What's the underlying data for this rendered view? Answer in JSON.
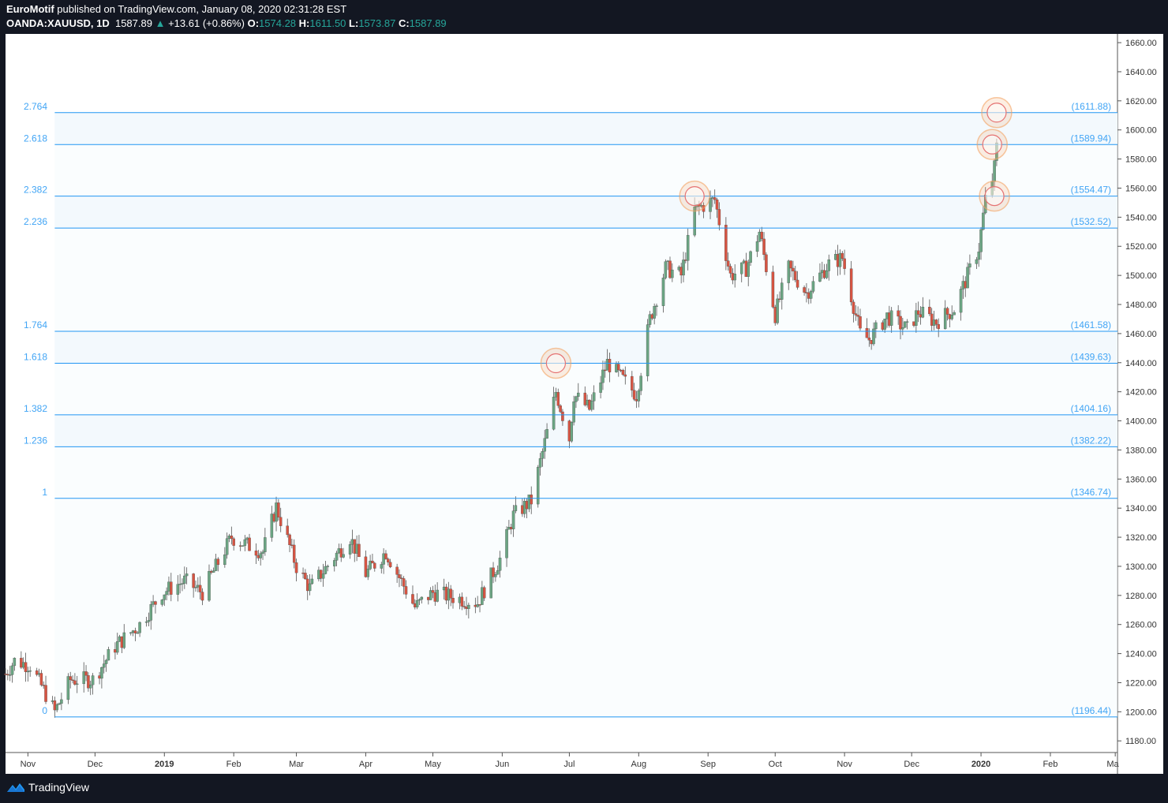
{
  "header": {
    "author": "EuroMotif",
    "published_text": " published on TradingView.com, January 08, 2020 02:31:28 EST",
    "symbol": "OANDA:XAUUSD, 1D",
    "last": "1587.89",
    "change": "+13.61 (+0.86%)",
    "o_label": "O:",
    "o_value": "1574.28",
    "h_label": "H:",
    "h_value": "1611.50",
    "l_label": "L:",
    "l_value": "1573.87",
    "c_label": "C:",
    "c_value": "1587.89"
  },
  "footer": {
    "brand": "TradingView",
    "logo_icon": "tradingview-logo-icon"
  },
  "colors": {
    "up": "#6ba583",
    "down": "#d75442",
    "fib_line": "#2196f3",
    "fib_text": "#42a5f5",
    "fib_band": "#eef6fd",
    "circle": "#f4a261"
  },
  "chart_data": {
    "type": "candlestick",
    "ylim": [
      1172,
      1666
    ],
    "y_ticks": [
      1180,
      1200,
      1220,
      1240,
      1260,
      1280,
      1300,
      1320,
      1340,
      1360,
      1380,
      1400,
      1420,
      1440,
      1460,
      1480,
      1500,
      1520,
      1540,
      1560,
      1580,
      1600,
      1620,
      1640,
      1660
    ],
    "y_tick_labels": [
      "1180.00",
      "1200.00",
      "1220.00",
      "1240.00",
      "1260.00",
      "1280.00",
      "1300.00",
      "1320.00",
      "1340.00",
      "1360.00",
      "1380.00",
      "1400.00",
      "1420.00",
      "1440.00",
      "1460.00",
      "1480.00",
      "1500.00",
      "1520.00",
      "1540.00",
      "1560.00",
      "1580.00",
      "1600.00",
      "1620.00",
      "1640.00",
      "1660.00"
    ],
    "x_labels": [
      "Nov",
      "Dec",
      "2019",
      "Feb",
      "Mar",
      "Apr",
      "May",
      "Jun",
      "Jul",
      "Aug",
      "Sep",
      "Oct",
      "Nov",
      "Dec",
      "2020",
      "Feb",
      "Ma"
    ],
    "x_label_dates": [
      "2018-11-01",
      "2018-12-01",
      "2019-01-01",
      "2019-02-01",
      "2019-03-01",
      "2019-04-01",
      "2019-05-01",
      "2019-06-01",
      "2019-07-01",
      "2019-08-01",
      "2019-09-01",
      "2019-10-01",
      "2019-11-01",
      "2019-12-01",
      "2020-01-01",
      "2020-02-01",
      "2020-03-01"
    ],
    "x_range": [
      "2018-10-22",
      "2020-03-02"
    ],
    "fib_levels": [
      {
        "ratio": "2.764",
        "price": "(1611.88)",
        "value": 1611.88
      },
      {
        "ratio": "2.618",
        "price": "(1589.94)",
        "value": 1589.94
      },
      {
        "ratio": "2.382",
        "price": "(1554.47)",
        "value": 1554.47
      },
      {
        "ratio": "2.236",
        "price": "(1532.52)",
        "value": 1532.52
      },
      {
        "ratio": "1.764",
        "price": "(1461.58)",
        "value": 1461.58
      },
      {
        "ratio": "1.618",
        "price": "(1439.63)",
        "value": 1439.63
      },
      {
        "ratio": "1.382",
        "price": "(1404.16)",
        "value": 1404.16
      },
      {
        "ratio": "1.236",
        "price": "(1382.22)",
        "value": 1382.22
      },
      {
        "ratio": "1",
        "price": "(1346.74)",
        "value": 1346.74
      },
      {
        "ratio": "0",
        "price": "(1196.44)",
        "value": 1196.44
      }
    ],
    "fib_start_date": "2018-11-13",
    "highlight_circles": [
      {
        "date": "2019-06-25",
        "value": 1439.6
      },
      {
        "date": "2019-08-26",
        "value": 1554.5
      },
      {
        "date": "2020-01-06",
        "value": 1590.0
      },
      {
        "date": "2020-01-07",
        "value": 1554.5
      },
      {
        "date": "2020-01-08",
        "value": 1611.9
      }
    ],
    "price_path": [
      [
        "2018-10-22",
        1226
      ],
      [
        "2018-10-26",
        1235
      ],
      [
        "2018-11-02",
        1232
      ],
      [
        "2018-11-08",
        1215
      ],
      [
        "2018-11-13",
        1200
      ],
      [
        "2018-11-20",
        1222
      ],
      [
        "2018-11-30",
        1222
      ],
      [
        "2018-12-10",
        1245
      ],
      [
        "2018-12-21",
        1260
      ],
      [
        "2018-12-31",
        1282
      ],
      [
        "2019-01-10",
        1290
      ],
      [
        "2019-01-18",
        1282
      ],
      [
        "2019-01-31",
        1320
      ],
      [
        "2019-02-08",
        1314
      ],
      [
        "2019-02-14",
        1310
      ],
      [
        "2019-02-20",
        1341
      ],
      [
        "2019-03-01",
        1300
      ],
      [
        "2019-03-07",
        1285
      ],
      [
        "2019-03-25",
        1320
      ],
      [
        "2019-04-01",
        1295
      ],
      [
        "2019-04-10",
        1310
      ],
      [
        "2019-04-23",
        1272
      ],
      [
        "2019-05-01",
        1282
      ],
      [
        "2019-05-21",
        1275
      ],
      [
        "2019-05-31",
        1305
      ],
      [
        "2019-06-06",
        1335
      ],
      [
        "2019-06-14",
        1345
      ],
      [
        "2019-06-20",
        1385
      ],
      [
        "2019-06-25",
        1420
      ],
      [
        "2019-07-01",
        1388
      ],
      [
        "2019-07-03",
        1418
      ],
      [
        "2019-07-10",
        1408
      ],
      [
        "2019-07-18",
        1440
      ],
      [
        "2019-07-31",
        1418
      ],
      [
        "2019-08-06",
        1470
      ],
      [
        "2019-08-13",
        1505
      ],
      [
        "2019-08-20",
        1500
      ],
      [
        "2019-08-26",
        1545
      ],
      [
        "2019-09-04",
        1552
      ],
      [
        "2019-09-11",
        1500
      ],
      [
        "2019-09-18",
        1505
      ],
      [
        "2019-09-24",
        1530
      ],
      [
        "2019-10-01",
        1473
      ],
      [
        "2019-10-07",
        1505
      ],
      [
        "2019-10-15",
        1488
      ],
      [
        "2019-10-25",
        1508
      ],
      [
        "2019-10-31",
        1512
      ],
      [
        "2019-11-08",
        1460
      ],
      [
        "2019-11-12",
        1456
      ],
      [
        "2019-11-20",
        1472
      ],
      [
        "2019-11-29",
        1463
      ],
      [
        "2019-12-04",
        1475
      ],
      [
        "2019-12-12",
        1468
      ],
      [
        "2019-12-20",
        1477
      ],
      [
        "2019-12-31",
        1519
      ],
      [
        "2020-01-03",
        1552
      ],
      [
        "2020-01-06",
        1566
      ],
      [
        "2020-01-07",
        1574
      ],
      [
        "2020-01-08",
        1588
      ]
    ]
  }
}
